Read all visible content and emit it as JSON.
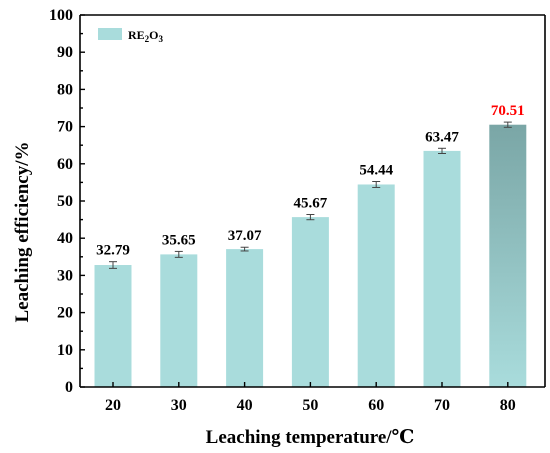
{
  "chart_data": {
    "type": "bar",
    "categories": [
      "20",
      "30",
      "40",
      "50",
      "60",
      "70",
      "80"
    ],
    "series": [
      {
        "name": "RE2O3",
        "values": [
          32.79,
          35.65,
          37.07,
          45.67,
          54.44,
          63.47,
          70.51
        ],
        "errors": [
          0.9,
          0.8,
          0.5,
          0.7,
          0.8,
          0.7,
          0.7
        ],
        "data_labels": [
          "32.79",
          "35.65",
          "37.07",
          "45.67",
          "54.44",
          "63.47",
          "70.51"
        ]
      }
    ],
    "xlabel": "Leaching temperature/℃",
    "ylabel": "Leaching efficiency/%",
    "ylim": [
      0,
      100
    ],
    "yticks": [
      "0",
      "10",
      "20",
      "30",
      "40",
      "50",
      "60",
      "70",
      "80",
      "90",
      "100"
    ],
    "grid": false,
    "legend": {
      "position": "top-left",
      "label_main": "RE",
      "sub1": "2",
      "mid": "O",
      "sub2": "3"
    },
    "colors": {
      "bar": "#a9dcdc",
      "bar_highlight_top": "#7aa6a6",
      "bar_highlight_bottom": "#a9dcdc",
      "label": "#000000",
      "label_highlight": "#ff0000"
    },
    "highlight_index": 6
  }
}
